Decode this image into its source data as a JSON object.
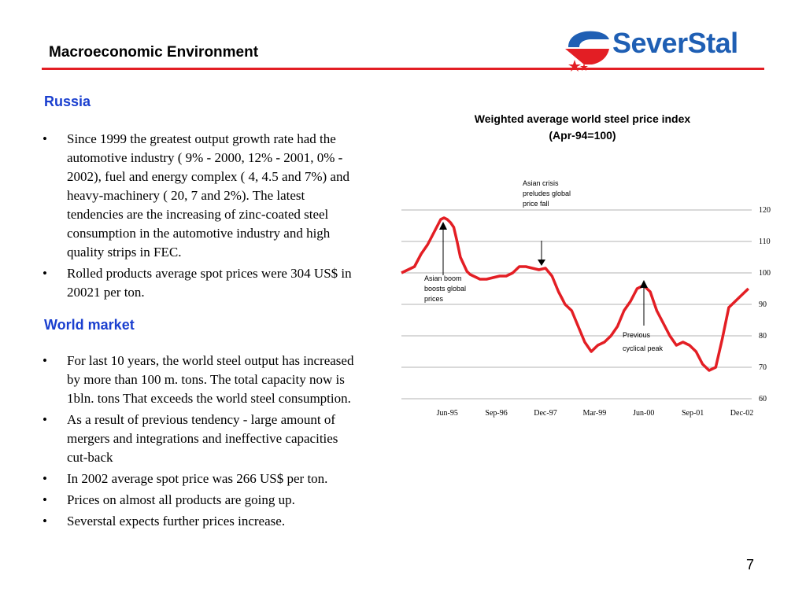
{
  "header": {
    "title": "Macroeconomic Environment",
    "logo_text": "SeverStal"
  },
  "colors": {
    "accent_red": "#e31e24",
    "heading_blue": "#1a3fcf",
    "logo_blue": "#1f5fb4"
  },
  "sections": {
    "russia": {
      "heading": "Russia",
      "bullets": [
        "Since 1999 the greatest output growth rate had the automotive industry ( 9% - 2000, 12% - 2001, 0% - 2002), fuel and energy complex ( 4, 4.5 and 7%) and heavy-machinery ( 20, 7 and 2%). The latest tendencies are the increasing of zinc-coated steel consumption in the automotive industry and high quality strips in FEC.",
        "Rolled products average spot prices were 304 US$ in 20021 per ton."
      ]
    },
    "world": {
      "heading": "World market",
      "bullets": [
        "For last 10 years, the world steel output has increased by more than 100 m. tons. The total capacity now is 1bln. tons That exceeds  the world steel consumption.",
        "As a result of previous tendency - large amount of mergers and integrations and ineffective capacities cut-back",
        "In 2002 average spot price was 266 US$ per ton.",
        "Prices on almost all products are going up.",
        "Severstal expects further prices increase."
      ]
    }
  },
  "chart_data": {
    "type": "line",
    "title": "Weighted average world steel price index (Apr-94=100)",
    "title_line1": "Weighted average world steel price index",
    "title_line2": "(Apr-94=100)",
    "x_tick_labels": [
      "Jun-95",
      "Sep-96",
      "Dec-97",
      "Mar-99",
      "Jun-00",
      "Sep-01",
      "Dec-02"
    ],
    "y_tick_labels": [
      "120",
      "110",
      "100",
      "90",
      "80",
      "70",
      "60"
    ],
    "ylim": [
      60,
      120
    ],
    "xlim": [
      "Apr-94",
      "Mar-03"
    ],
    "grid": "horizontal",
    "line_color": "#e31e24",
    "series": [
      {
        "x": [
          "Apr-94",
          "Jun-94",
          "Aug-94",
          "Oct-94",
          "Dec-94",
          "Feb-95",
          "Apr-95",
          "May-95",
          "Jun-95",
          "Jul-95",
          "Aug-95",
          "Sep-95",
          "Oct-95",
          "Dec-95",
          "Jan-96",
          "Feb-96",
          "Mar-96",
          "Apr-96",
          "Jun-96",
          "Aug-96",
          "Oct-96",
          "Dec-96",
          "Feb-97",
          "Apr-97",
          "Jun-97",
          "Aug-97",
          "Oct-97",
          "Dec-97",
          "Feb-98",
          "Apr-98",
          "May-98",
          "Jun-98",
          "Aug-98",
          "Oct-98",
          "Dec-98",
          "Feb-99",
          "Apr-99",
          "Jun-99",
          "Aug-99",
          "Oct-99",
          "Dec-99",
          "Feb-00",
          "Apr-00",
          "Jun-00",
          "Aug-00",
          "Oct-00",
          "Dec-00",
          "Feb-01",
          "Apr-01",
          "Jun-01",
          "Aug-01",
          "Oct-01",
          "Dec-01",
          "Feb-02",
          "Apr-02",
          "Jun-02",
          "Aug-02",
          "Oct-02",
          "Dec-02",
          "Feb-03"
        ],
        "values": [
          100,
          101,
          102,
          106,
          109,
          113,
          117,
          117.5,
          117,
          116,
          114.5,
          110,
          105,
          100.5,
          99.5,
          99,
          98.5,
          98,
          98,
          98.5,
          99,
          99,
          100,
          102,
          102,
          101.5,
          101,
          101.5,
          99,
          94,
          92,
          90,
          88,
          83,
          78,
          75,
          77,
          78,
          80,
          83,
          88,
          91,
          95,
          96,
          94,
          88,
          84,
          80,
          77,
          78,
          77,
          75,
          71,
          69,
          70,
          79,
          89,
          91,
          93,
          95
        ]
      }
    ],
    "annotations": [
      {
        "lines": [
          "Asian crisis",
          "preludes global",
          "price fall"
        ]
      },
      {
        "lines": [
          "Asian boom",
          "boosts global",
          "prices"
        ]
      },
      {
        "lines": [
          "Previous",
          "cyclical peak"
        ]
      }
    ]
  },
  "footer": {
    "page_number": "7"
  }
}
